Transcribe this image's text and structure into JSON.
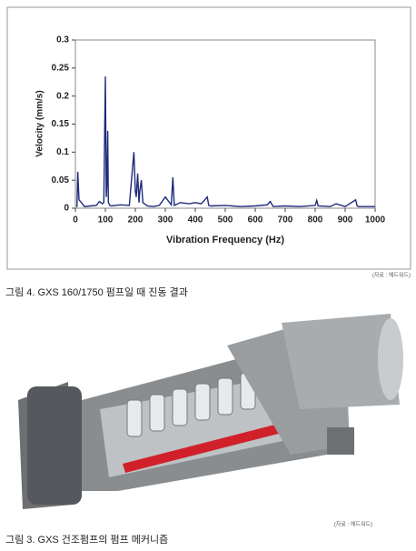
{
  "chart_data": {
    "type": "line",
    "ylabel": "Velocity (mm/s)",
    "xlabel": "Vibration Frequency (Hz)",
    "x": [
      5,
      8,
      12,
      20,
      30,
      50,
      70,
      80,
      90,
      95,
      100,
      103,
      105,
      108,
      110,
      115,
      120,
      150,
      180,
      195,
      200,
      203,
      208,
      212,
      215,
      220,
      225,
      230,
      240,
      260,
      280,
      300,
      320,
      325,
      330,
      350,
      380,
      400,
      420,
      440,
      445,
      450,
      500,
      550,
      600,
      640,
      650,
      660,
      700,
      750,
      800,
      805,
      810,
      850,
      870,
      900,
      935,
      940,
      945,
      1000
    ],
    "values": [
      0.002,
      0.065,
      0.015,
      0.01,
      0.003,
      0.004,
      0.005,
      0.012,
      0.008,
      0.01,
      0.235,
      0.02,
      0.04,
      0.138,
      0.01,
      0.005,
      0.004,
      0.006,
      0.005,
      0.1,
      0.03,
      0.02,
      0.062,
      0.01,
      0.03,
      0.05,
      0.01,
      0.008,
      0.004,
      0.003,
      0.005,
      0.02,
      0.006,
      0.055,
      0.005,
      0.01,
      0.008,
      0.01,
      0.008,
      0.02,
      0.005,
      0.004,
      0.005,
      0.003,
      0.004,
      0.006,
      0.012,
      0.003,
      0.004,
      0.003,
      0.005,
      0.014,
      0.004,
      0.003,
      0.008,
      0.003,
      0.015,
      0.004,
      0.003,
      0.003
    ],
    "color": "#1f2a7a",
    "xlim": [
      0,
      1000
    ],
    "xticks": [
      0,
      100,
      200,
      300,
      400,
      500,
      600,
      700,
      800,
      900,
      1000
    ],
    "ylim": [
      0,
      0.3
    ],
    "yticks": [
      0,
      0.05,
      0.1,
      0.15,
      0.2,
      0.25,
      0.3
    ]
  },
  "chart_source": "(자료 : 에드워드)",
  "chart_caption": "그림 4. GXS 160/1750 펌프일 때 진동 결과",
  "photo_source": "(자료 : 에드워드)",
  "photo_caption": "그림 3. GXS 건조펌프의 펌프 메커니즘"
}
